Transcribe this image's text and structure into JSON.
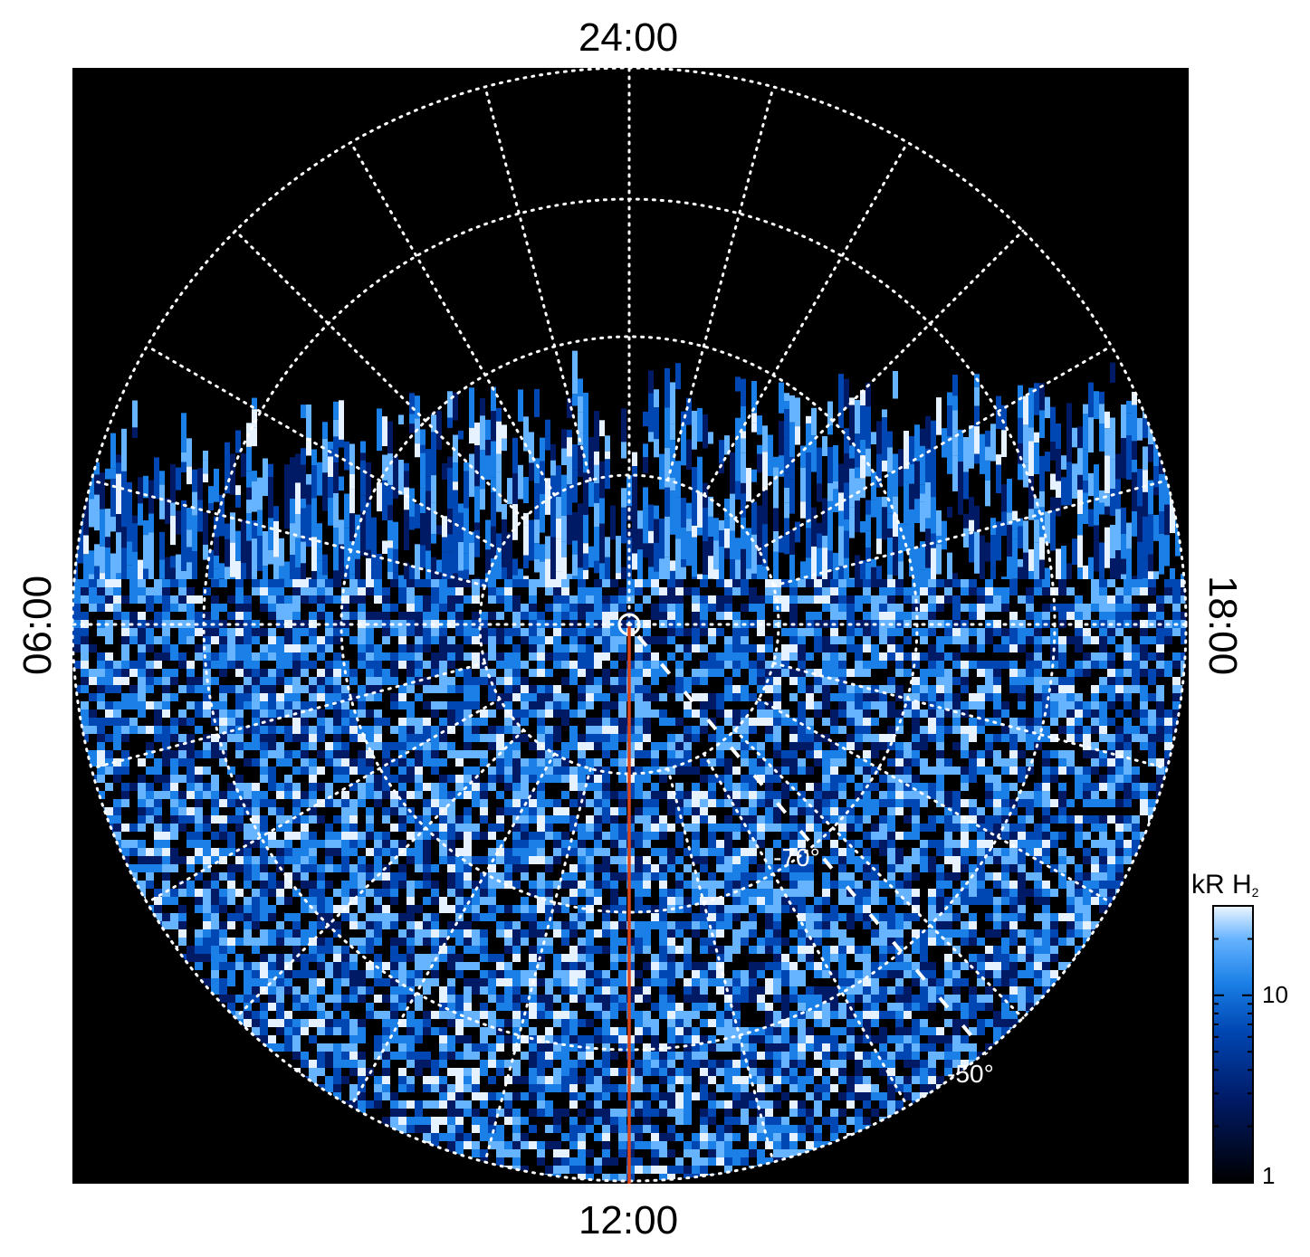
{
  "figure": {
    "local_time_labels": {
      "top": "24:00",
      "left": "06:00",
      "right": "18:00",
      "bottom": "12:00"
    },
    "latitude_labels": [
      "-70°",
      "-50°"
    ],
    "colorbar": {
      "title": "kR H",
      "title_subscript": "2",
      "tick_labels": [
        "1",
        "10"
      ],
      "scale": "log",
      "range": [
        1,
        30
      ]
    },
    "colors": {
      "background": "#000000",
      "grid": "#ffffff",
      "track_line": "#d9461e",
      "colormap": [
        "#000000",
        "#001a66",
        "#0047b3",
        "#1a7fe6",
        "#66b3ff",
        "#e6f2ff"
      ]
    }
  }
}
